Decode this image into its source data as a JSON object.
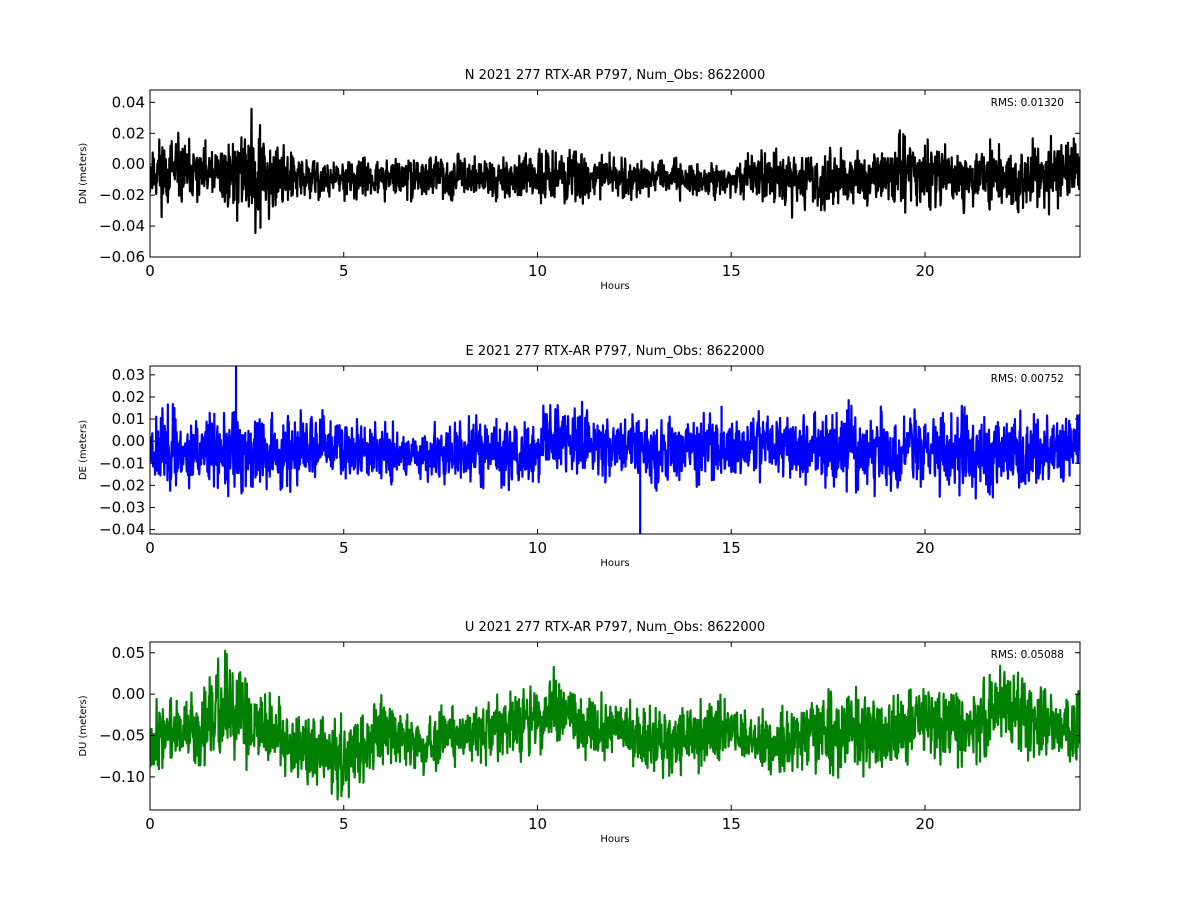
{
  "chart_data": [
    {
      "type": "line",
      "title": "N 2021 277 RTX-AR  P797, Num_Obs: 8622000",
      "xlabel": "Hours",
      "ylabel": "DN (meters)",
      "xlim": [
        0,
        24
      ],
      "ylim": [
        -0.06,
        0.048
      ],
      "xticks": [
        0,
        5,
        10,
        15,
        20
      ],
      "xtick_labels": [
        "0",
        "5",
        "10",
        "15",
        "20"
      ],
      "yticks": [
        -0.06,
        -0.04,
        -0.02,
        0.0,
        0.02,
        0.04
      ],
      "ytick_labels": [
        "−0.06",
        "−0.04",
        "−0.02",
        "0.00",
        "0.02",
        "0.04"
      ],
      "grid": false,
      "color": "#000000",
      "annotation": {
        "text": "RMS:  0.01320",
        "color": "#0000ff",
        "position": "top-right"
      },
      "series": [
        {
          "envelope": {
            "x": [
              0,
              0.5,
              1,
              1.5,
              2,
              2.5,
              2.8,
              3.2,
              3.5,
              4,
              5,
              6,
              7,
              8,
              9,
              10,
              10.5,
              11,
              12,
              13,
              14,
              14.5,
              15,
              15.5,
              16,
              17,
              18,
              19,
              19.5,
              20,
              21,
              22,
              22.5,
              23,
              23.5,
              24
            ],
            "center": [
              -0.005,
              -0.005,
              -0.006,
              -0.008,
              -0.007,
              -0.004,
              -0.006,
              -0.008,
              -0.009,
              -0.01,
              -0.01,
              -0.009,
              -0.008,
              -0.008,
              -0.009,
              -0.008,
              -0.006,
              -0.008,
              -0.008,
              -0.009,
              -0.01,
              -0.01,
              -0.012,
              -0.006,
              -0.008,
              -0.012,
              -0.01,
              -0.008,
              -0.004,
              -0.008,
              -0.006,
              -0.01,
              -0.012,
              -0.01,
              -0.004,
              -0.004
            ],
            "half_range": [
              0.02,
              0.02,
              0.017,
              0.016,
              0.02,
              0.025,
              0.03,
              0.024,
              0.014,
              0.012,
              0.011,
              0.011,
              0.011,
              0.011,
              0.011,
              0.013,
              0.017,
              0.015,
              0.011,
              0.01,
              0.01,
              0.009,
              0.008,
              0.012,
              0.015,
              0.016,
              0.015,
              0.016,
              0.022,
              0.017,
              0.018,
              0.017,
              0.021,
              0.02,
              0.018,
              0.018
            ]
          }
        }
      ]
    },
    {
      "type": "line",
      "title": "E 2021 277 RTX-AR  P797, Num_Obs: 8622000",
      "xlabel": "Hours",
      "ylabel": "DE (meters)",
      "xlim": [
        0,
        24
      ],
      "ylim": [
        -0.042,
        0.034
      ],
      "xticks": [
        0,
        5,
        10,
        15,
        20
      ],
      "xtick_labels": [
        "0",
        "5",
        "10",
        "15",
        "20"
      ],
      "yticks": [
        -0.04,
        -0.03,
        -0.02,
        -0.01,
        0.0,
        0.01,
        0.02,
        0.03
      ],
      "ytick_labels": [
        "−0.04",
        "−0.03",
        "−0.02",
        "−0.01",
        "0.00",
        "0.01",
        "0.02",
        "0.03"
      ],
      "grid": false,
      "color": "#0000ff",
      "annotation": {
        "text": "RMS:  0.00752",
        "color": "#0000ff",
        "position": "top-right"
      },
      "series": [
        {
          "envelope": {
            "x": [
              0,
              0.3,
              1,
              2,
              2.2,
              3,
              4,
              5,
              6,
              7,
              8,
              9,
              10,
              10.3,
              11,
              12,
              13,
              14,
              15,
              16,
              17,
              18,
              19,
              20,
              21,
              22,
              23,
              24
            ],
            "center": [
              -0.003,
              -0.003,
              -0.005,
              -0.006,
              -0.004,
              -0.006,
              -0.004,
              -0.003,
              -0.005,
              -0.006,
              -0.005,
              -0.005,
              -0.006,
              0.002,
              0.0,
              -0.002,
              -0.004,
              -0.003,
              -0.003,
              -0.002,
              -0.003,
              -0.002,
              -0.005,
              -0.005,
              -0.004,
              -0.005,
              -0.005,
              0.0
            ],
            "half_range": [
              0.015,
              0.016,
              0.013,
              0.014,
              0.018,
              0.014,
              0.013,
              0.013,
              0.011,
              0.01,
              0.012,
              0.013,
              0.014,
              0.016,
              0.013,
              0.013,
              0.013,
              0.013,
              0.011,
              0.011,
              0.013,
              0.016,
              0.015,
              0.014,
              0.016,
              0.014,
              0.013,
              0.013
            ]
          },
          "spikes": [
            {
              "x": 2.22,
              "y": 0.034
            },
            {
              "x": 12.65,
              "y": -0.042
            },
            {
              "x": 14.75,
              "y": 0.016
            }
          ]
        }
      ]
    },
    {
      "type": "line",
      "title": "U 2021 277 RTX-AR  P797, Num_Obs: 8622000",
      "xlabel": "Hours",
      "ylabel": "DU (meters)",
      "xlim": [
        0,
        24
      ],
      "ylim": [
        -0.14,
        0.063
      ],
      "xticks": [
        0,
        5,
        10,
        15,
        20
      ],
      "xtick_labels": [
        "0",
        "5",
        "10",
        "15",
        "20"
      ],
      "yticks": [
        -0.1,
        -0.05,
        0.0,
        0.05
      ],
      "ytick_labels": [
        "−0.10",
        "−0.05",
        "0.00",
        "0.05"
      ],
      "grid": false,
      "color": "#008000",
      "annotation": {
        "text": "RMS:  0.05088",
        "color": "#0000ff",
        "position": "top-right"
      },
      "series": [
        {
          "envelope": {
            "x": [
              0,
              0.5,
              1,
              1.5,
              2,
              2.5,
              3,
              3.5,
              4,
              4.5,
              5,
              5.5,
              6,
              6.5,
              7,
              8,
              9,
              10,
              10.5,
              11,
              12,
              13,
              14,
              15,
              15.5,
              16,
              17,
              18,
              19,
              20,
              21,
              22,
              23,
              24
            ],
            "center": [
              -0.05,
              -0.045,
              -0.05,
              -0.04,
              -0.02,
              -0.03,
              -0.045,
              -0.05,
              -0.07,
              -0.07,
              -0.08,
              -0.065,
              -0.04,
              -0.055,
              -0.06,
              -0.05,
              -0.04,
              -0.03,
              -0.02,
              -0.04,
              -0.04,
              -0.06,
              -0.05,
              -0.04,
              -0.06,
              -0.06,
              -0.05,
              -0.04,
              -0.05,
              -0.03,
              -0.04,
              -0.01,
              -0.04,
              -0.04
            ],
            "half_range": [
              0.04,
              0.035,
              0.035,
              0.045,
              0.06,
              0.045,
              0.035,
              0.035,
              0.04,
              0.035,
              0.045,
              0.035,
              0.04,
              0.03,
              0.03,
              0.03,
              0.035,
              0.035,
              0.04,
              0.035,
              0.035,
              0.035,
              0.035,
              0.035,
              0.03,
              0.035,
              0.035,
              0.045,
              0.04,
              0.04,
              0.04,
              0.04,
              0.035,
              0.03
            ]
          }
        }
      ]
    }
  ]
}
